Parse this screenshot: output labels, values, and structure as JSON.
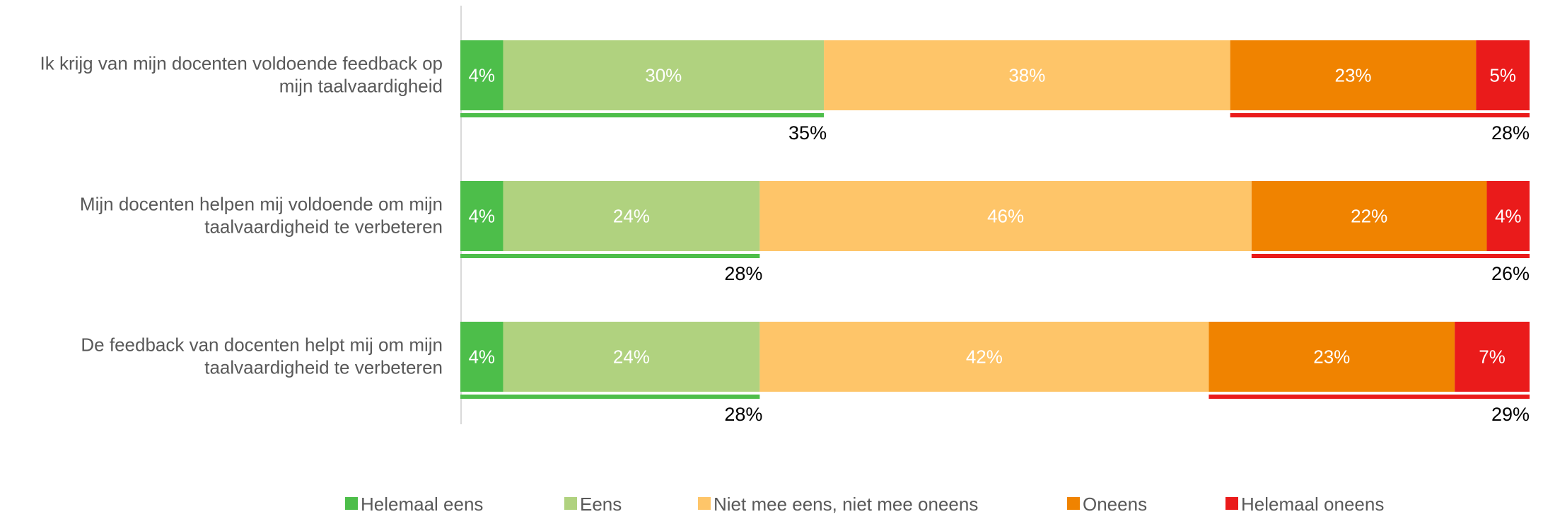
{
  "chart_data": {
    "type": "bar",
    "orientation": "horizontal",
    "stacked": true,
    "normalized_to_100": true,
    "categories": [
      [
        "Ik krijg van mijn docenten voldoende feedback op",
        "mijn taalvaardigheid"
      ],
      [
        "Mijn docenten helpen mij voldoende om mijn",
        "taalvaardigheid te verbeteren"
      ],
      [
        "De feedback van docenten helpt mij om mijn",
        "taalvaardigheid te verbeteren"
      ]
    ],
    "series": [
      {
        "name": "Helemaal eens",
        "color": "#4dbe4a",
        "values": [
          4,
          4,
          4
        ],
        "labels": [
          "4%",
          "4%",
          "4%"
        ]
      },
      {
        "name": "Eens",
        "color": "#b0d27f",
        "values": [
          30,
          24,
          24
        ],
        "labels": [
          "30%",
          "24%",
          "24%"
        ]
      },
      {
        "name": "Niet mee eens, niet mee oneens",
        "color": "#fec569",
        "values": [
          38,
          46,
          42
        ],
        "labels": [
          "38%",
          "46%",
          "42%"
        ]
      },
      {
        "name": "Oneens",
        "color": "#f08300",
        "values": [
          23,
          22,
          23
        ],
        "labels": [
          "23%",
          "22%",
          "23%"
        ]
      },
      {
        "name": "Helemaal oneens",
        "color": "#ea1b1b",
        "values": [
          5,
          4,
          7
        ],
        "labels": [
          "5%",
          "4%",
          "7%"
        ]
      }
    ],
    "agree_totals": {
      "values": [
        35,
        28,
        28
      ],
      "labels": [
        "35%",
        "28%",
        "28%"
      ],
      "color": "#4dbe4a"
    },
    "disagree_totals": {
      "values": [
        28,
        26,
        29
      ],
      "labels": [
        "28%",
        "26%",
        "29%"
      ],
      "color": "#ea1b1b"
    },
    "title": "",
    "xlabel": "",
    "ylabel": "",
    "xlim": [
      0,
      100
    ],
    "grid": false,
    "legend": "bottom"
  }
}
